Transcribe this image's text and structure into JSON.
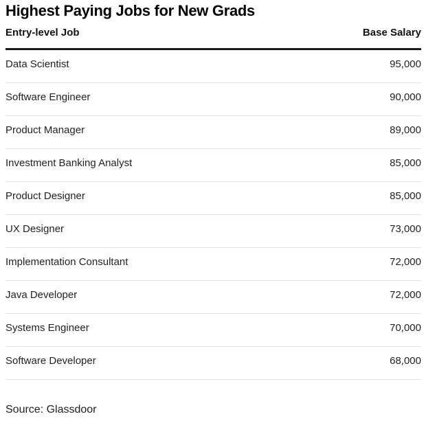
{
  "title": "Highest Paying Jobs for New Grads",
  "source": "Source: Glassdoor",
  "chart_data": {
    "type": "table",
    "title": "Highest Paying Jobs for New Grads",
    "columns": [
      "Entry-level Job",
      "Base Salary"
    ],
    "rows": [
      {
        "job": "Data Scientist",
        "salary": "95,000"
      },
      {
        "job": "Software Engineer",
        "salary": "90,000"
      },
      {
        "job": "Product Manager",
        "salary": "89,000"
      },
      {
        "job": "Investment Banking Analyst",
        "salary": "85,000"
      },
      {
        "job": "Product Designer",
        "salary": "85,000"
      },
      {
        "job": "UX Designer",
        "salary": "73,000"
      },
      {
        "job": "Implementation Consultant",
        "salary": "72,000"
      },
      {
        "job": "Java Developer",
        "salary": "72,000"
      },
      {
        "job": "Systems Engineer",
        "salary": "70,000"
      },
      {
        "job": "Software Developer",
        "salary": "68,000"
      }
    ]
  }
}
